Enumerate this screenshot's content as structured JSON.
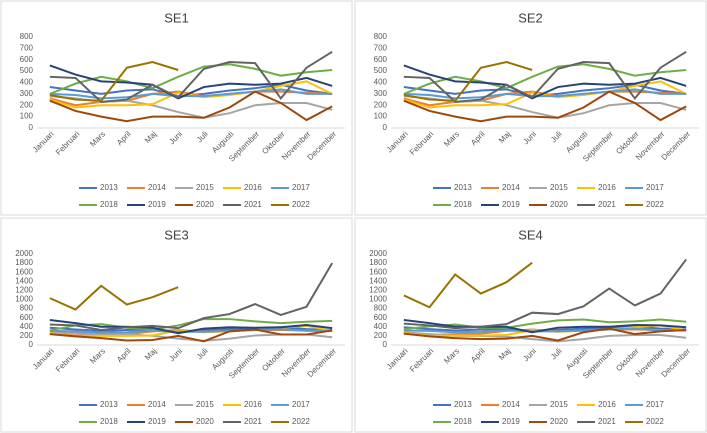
{
  "chart_data": [
    {
      "type": "line",
      "title": "SE1",
      "categories": [
        "Januari",
        "Februari",
        "Mars",
        "April",
        "Maj",
        "Juni",
        "Juli",
        "Augusti",
        "September",
        "Oktober",
        "November",
        "December"
      ],
      "ylim": [
        0,
        800
      ],
      "yticks": [
        0,
        100,
        200,
        300,
        400,
        500,
        600,
        700,
        800
      ],
      "series": [
        {
          "name": "2013",
          "color": "#4472c4",
          "values": [
            360,
            330,
            300,
            330,
            340,
            280,
            300,
            330,
            350,
            380,
            330,
            300
          ]
        },
        {
          "name": "2014",
          "color": "#ed7d31",
          "values": [
            260,
            200,
            230,
            240,
            300,
            320,
            280,
            300,
            320,
            320,
            310,
            300
          ]
        },
        {
          "name": "2015",
          "color": "#a5a5a5",
          "values": [
            280,
            260,
            230,
            240,
            200,
            140,
            90,
            130,
            200,
            220,
            220,
            160
          ]
        },
        {
          "name": "2016",
          "color": "#ffc000",
          "values": [
            250,
            180,
            200,
            200,
            210,
            310,
            270,
            290,
            320,
            370,
            410,
            300
          ]
        },
        {
          "name": "2017",
          "color": "#5b9bd5",
          "values": [
            300,
            290,
            260,
            270,
            300,
            280,
            280,
            300,
            320,
            340,
            300,
            300
          ]
        },
        {
          "name": "2018",
          "color": "#70ad47",
          "values": [
            300,
            390,
            450,
            410,
            350,
            450,
            540,
            560,
            520,
            460,
            490,
            510
          ]
        },
        {
          "name": "2019",
          "color": "#264478",
          "values": [
            550,
            470,
            410,
            400,
            380,
            260,
            360,
            390,
            380,
            390,
            440,
            370
          ]
        },
        {
          "name": "2020",
          "color": "#9e480e",
          "values": [
            240,
            150,
            100,
            60,
            100,
            100,
            90,
            180,
            320,
            220,
            70,
            190
          ]
        },
        {
          "name": "2021",
          "color": "#636363",
          "values": [
            450,
            440,
            230,
            250,
            380,
            270,
            520,
            580,
            570,
            260,
            530,
            670
          ]
        },
        {
          "name": "2022",
          "color": "#997300",
          "values": [
            290,
            250,
            240,
            530,
            580,
            510,
            null,
            null,
            null,
            null,
            null,
            null
          ]
        }
      ]
    },
    {
      "type": "line",
      "title": "SE2",
      "categories": [
        "Januari",
        "Februari",
        "Mars",
        "April",
        "Maj",
        "Juni",
        "Juli",
        "Augusti",
        "September",
        "Oktober",
        "November",
        "December"
      ],
      "ylim": [
        0,
        800
      ],
      "yticks": [
        0,
        100,
        200,
        300,
        400,
        500,
        600,
        700,
        800
      ],
      "series": [
        {
          "name": "2013",
          "color": "#4472c4",
          "values": [
            360,
            330,
            300,
            330,
            340,
            280,
            300,
            330,
            350,
            380,
            330,
            300
          ]
        },
        {
          "name": "2014",
          "color": "#ed7d31",
          "values": [
            260,
            200,
            230,
            240,
            300,
            320,
            280,
            300,
            320,
            320,
            310,
            300
          ]
        },
        {
          "name": "2015",
          "color": "#a5a5a5",
          "values": [
            280,
            260,
            230,
            240,
            200,
            140,
            90,
            130,
            200,
            220,
            220,
            160
          ]
        },
        {
          "name": "2016",
          "color": "#ffc000",
          "values": [
            250,
            180,
            200,
            200,
            210,
            310,
            270,
            290,
            320,
            370,
            410,
            300
          ]
        },
        {
          "name": "2017",
          "color": "#5b9bd5",
          "values": [
            300,
            290,
            260,
            270,
            300,
            280,
            280,
            300,
            320,
            340,
            300,
            300
          ]
        },
        {
          "name": "2018",
          "color": "#70ad47",
          "values": [
            300,
            390,
            450,
            410,
            350,
            450,
            540,
            560,
            520,
            460,
            490,
            510
          ]
        },
        {
          "name": "2019",
          "color": "#264478",
          "values": [
            550,
            470,
            410,
            400,
            380,
            260,
            360,
            390,
            380,
            390,
            440,
            370
          ]
        },
        {
          "name": "2020",
          "color": "#9e480e",
          "values": [
            240,
            150,
            100,
            60,
            100,
            100,
            90,
            180,
            320,
            220,
            70,
            190
          ]
        },
        {
          "name": "2021",
          "color": "#636363",
          "values": [
            450,
            440,
            230,
            250,
            380,
            270,
            520,
            580,
            570,
            260,
            530,
            670
          ]
        },
        {
          "name": "2022",
          "color": "#997300",
          "values": [
            290,
            250,
            240,
            530,
            580,
            510,
            null,
            null,
            null,
            null,
            null,
            null
          ]
        }
      ]
    },
    {
      "type": "line",
      "title": "SE3",
      "categories": [
        "Januari",
        "Februari",
        "Mars",
        "April",
        "Maj",
        "Juni",
        "Juli",
        "Augusti",
        "September",
        "Oktober",
        "November",
        "December"
      ],
      "ylim": [
        0,
        2000
      ],
      "yticks": [
        0,
        200,
        400,
        600,
        800,
        1000,
        1200,
        1400,
        1600,
        1800,
        2000
      ],
      "series": [
        {
          "name": "2013",
          "color": "#4472c4",
          "values": [
            380,
            340,
            310,
            330,
            340,
            290,
            320,
            350,
            370,
            390,
            350,
            330
          ]
        },
        {
          "name": "2014",
          "color": "#ed7d31",
          "values": [
            260,
            210,
            230,
            240,
            300,
            330,
            290,
            310,
            330,
            330,
            320,
            310
          ]
        },
        {
          "name": "2015",
          "color": "#a5a5a5",
          "values": [
            290,
            260,
            230,
            240,
            200,
            140,
            90,
            140,
            210,
            230,
            230,
            170
          ]
        },
        {
          "name": "2016",
          "color": "#ffc000",
          "values": [
            260,
            190,
            200,
            200,
            210,
            320,
            280,
            300,
            330,
            380,
            420,
            310
          ]
        },
        {
          "name": "2017",
          "color": "#5b9bd5",
          "values": [
            310,
            300,
            270,
            280,
            310,
            290,
            290,
            310,
            330,
            350,
            310,
            310
          ]
        },
        {
          "name": "2018",
          "color": "#70ad47",
          "values": [
            320,
            430,
            460,
            380,
            340,
            430,
            570,
            570,
            520,
            480,
            510,
            530
          ]
        },
        {
          "name": "2019",
          "color": "#264478",
          "values": [
            550,
            480,
            400,
            400,
            380,
            260,
            360,
            390,
            380,
            390,
            440,
            370
          ]
        },
        {
          "name": "2020",
          "color": "#9e480e",
          "values": [
            240,
            190,
            150,
            100,
            110,
            200,
            80,
            300,
            340,
            230,
            230,
            320
          ]
        },
        {
          "name": "2021",
          "color": "#636363",
          "values": [
            450,
            430,
            330,
            390,
            420,
            370,
            590,
            680,
            900,
            660,
            840,
            1800
          ]
        },
        {
          "name": "2022",
          "color": "#997300",
          "values": [
            1030,
            780,
            1300,
            890,
            1050,
            1270,
            null,
            null,
            null,
            null,
            null,
            null
          ]
        }
      ]
    },
    {
      "type": "line",
      "title": "SE4",
      "categories": [
        "Januari",
        "Februari",
        "Mars",
        "April",
        "Maj",
        "Juni",
        "Juli",
        "Augusti",
        "September",
        "Oktober",
        "November",
        "December"
      ],
      "ylim": [
        0,
        2000
      ],
      "yticks": [
        0,
        200,
        400,
        600,
        800,
        1000,
        1200,
        1400,
        1600,
        1800,
        2000
      ],
      "series": [
        {
          "name": "2013",
          "color": "#4472c4",
          "values": [
            390,
            350,
            320,
            340,
            350,
            300,
            330,
            360,
            380,
            400,
            360,
            340
          ]
        },
        {
          "name": "2014",
          "color": "#ed7d31",
          "values": [
            270,
            220,
            240,
            250,
            310,
            340,
            300,
            320,
            340,
            340,
            330,
            320
          ]
        },
        {
          "name": "2015",
          "color": "#a5a5a5",
          "values": [
            280,
            240,
            200,
            200,
            180,
            130,
            80,
            130,
            200,
            220,
            220,
            160
          ]
        },
        {
          "name": "2016",
          "color": "#ffc000",
          "values": [
            270,
            200,
            210,
            210,
            220,
            330,
            290,
            310,
            340,
            390,
            430,
            320
          ]
        },
        {
          "name": "2017",
          "color": "#5b9bd5",
          "values": [
            320,
            310,
            280,
            290,
            320,
            300,
            300,
            320,
            340,
            360,
            320,
            320
          ]
        },
        {
          "name": "2018",
          "color": "#70ad47",
          "values": [
            350,
            410,
            450,
            380,
            380,
            470,
            540,
            560,
            500,
            520,
            560,
            510
          ]
        },
        {
          "name": "2019",
          "color": "#264478",
          "values": [
            550,
            480,
            400,
            400,
            400,
            280,
            380,
            400,
            400,
            440,
            430,
            390
          ]
        },
        {
          "name": "2020",
          "color": "#9e480e",
          "values": [
            250,
            190,
            150,
            130,
            140,
            200,
            100,
            280,
            360,
            240,
            300,
            330
          ]
        },
        {
          "name": "2021",
          "color": "#636363",
          "values": [
            470,
            430,
            370,
            400,
            460,
            710,
            680,
            850,
            1240,
            870,
            1130,
            1880
          ]
        },
        {
          "name": "2022",
          "color": "#997300",
          "values": [
            1090,
            830,
            1550,
            1130,
            1380,
            1810,
            null,
            null,
            null,
            null,
            null,
            null
          ]
        }
      ]
    }
  ]
}
